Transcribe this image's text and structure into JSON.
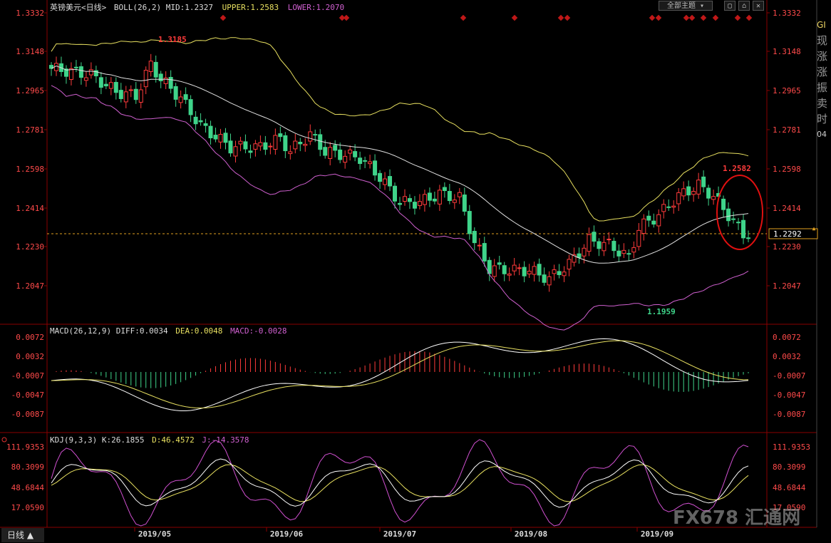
{
  "top_bar": {
    "symbol": "英镑美元<日线>",
    "boll_label": "BOLL(26,2)",
    "mid": "MID:1.2327",
    "upper": "UPPER:1.2583",
    "lower": "LOWER:1.2070",
    "theme_button": "全部主题"
  },
  "price_axis": {
    "left_ticks": [
      "1.3332",
      "1.3148",
      "1.2965",
      "1.2781",
      "1.2598",
      "1.2414",
      "1.2230",
      "1.2047"
    ],
    "right_ticks": [
      "1.3332",
      "1.3148",
      "1.2965",
      "1.2781",
      "1.2598",
      "1.2414",
      "1.2230",
      "1.2047"
    ],
    "current_price": "1.2292",
    "high_label": "1.3185",
    "high_label2": "1.2582",
    "low_label": "1.1959"
  },
  "macd": {
    "header": "MACD(26,12,9)",
    "diff": "DIFF:0.0034",
    "dea": "DEA:0.0048",
    "macd": "MACD:-0.0028",
    "ticks": [
      "0.0072",
      "0.0032",
      "-0.0007",
      "-0.0047",
      "-0.0087"
    ]
  },
  "kdj": {
    "header": "KDJ(9,3,3)",
    "k": "K:26.1855",
    "d": "D:46.4572",
    "j": "J:-14.3578",
    "ticks": [
      "111.9353",
      "80.3099",
      "48.6844",
      "17.0590"
    ]
  },
  "x_axis": [
    "2019/05",
    "2019/06",
    "2019/07",
    "2019/08",
    "2019/09"
  ],
  "sidebar_chars": [
    "GI",
    "现",
    "涨",
    "涨",
    "振",
    "卖",
    "时",
    "04"
  ],
  "bottom_tab": "日线 ▲",
  "watermark": "FX678 汇通网",
  "colors": {
    "up": "#ff3b3b",
    "down": "#3fd48a",
    "upper": "#e8e060",
    "mid": "#e0e0e0",
    "lower": "#d060d0",
    "dea": "#e8e060",
    "diff": "#ffffff",
    "j": "#d050d0",
    "grid": "#6a0000"
  },
  "chart_data": {
    "type": "candlestick",
    "x_range": [
      "2019/04",
      "2019/09"
    ],
    "price_range": [
      1.19,
      1.3332
    ],
    "current": 1.2292
  }
}
